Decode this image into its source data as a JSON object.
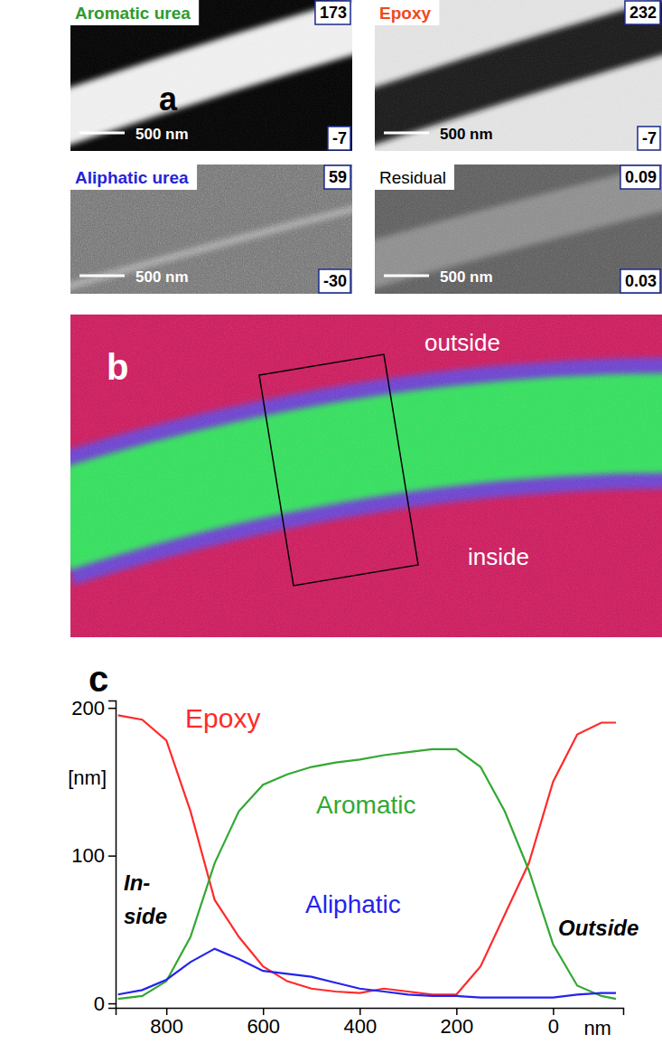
{
  "panels": {
    "a": {
      "label": "a",
      "images": [
        {
          "title": "Aromatic urea",
          "color": "#2e9a2e",
          "max": 173,
          "min": -7,
          "scale_bar": "500 nm"
        },
        {
          "title": "Epoxy",
          "color": "#ee4a1c",
          "max": 232,
          "min": -7,
          "scale_bar": "500 nm"
        },
        {
          "title": "Aliphatic urea",
          "color": "#2424d8",
          "max": 59,
          "min": -30,
          "scale_bar": "500 nm"
        },
        {
          "title": "Residual",
          "color": "#000000",
          "max": 0.09,
          "min": 0.03,
          "scale_bar": "500 nm"
        }
      ]
    },
    "b": {
      "label": "b",
      "outside": "outside",
      "inside": "inside"
    }
  },
  "chart_data": {
    "type": "line",
    "label": "c",
    "x": [
      900,
      850,
      800,
      750,
      700,
      650,
      600,
      550,
      500,
      450,
      400,
      350,
      300,
      250,
      200,
      150,
      100,
      50,
      0,
      -50,
      -100,
      -130
    ],
    "series": [
      {
        "name": "Epoxy",
        "color": "#ff2a2a",
        "values": [
          195,
          192,
          178,
          130,
          70,
          45,
          25,
          15,
          10,
          8,
          7,
          10,
          8,
          6,
          6,
          25,
          60,
          95,
          150,
          182,
          190,
          190
        ]
      },
      {
        "name": "Aromatic",
        "color": "#33a833",
        "values": [
          3,
          5,
          15,
          45,
          95,
          130,
          148,
          155,
          160,
          163,
          165,
          168,
          170,
          172,
          172,
          160,
          130,
          90,
          40,
          12,
          5,
          3
        ]
      },
      {
        "name": "Aliphatic",
        "color": "#2323ee",
        "values": [
          6,
          9,
          16,
          28,
          37,
          30,
          22,
          20,
          18,
          14,
          10,
          8,
          6,
          5,
          5,
          4,
          4,
          4,
          4,
          6,
          7,
          7
        ]
      }
    ],
    "xlim": [
      905,
      -145
    ],
    "xticks": [
      800,
      600,
      400,
      200,
      0
    ],
    "ylim": [
      -3,
      205
    ],
    "yticks": [
      0,
      100,
      200
    ],
    "x_label": "nm",
    "y_label": "[nm]",
    "annotations": [
      "In-side",
      "Outside"
    ],
    "grid": false
  }
}
